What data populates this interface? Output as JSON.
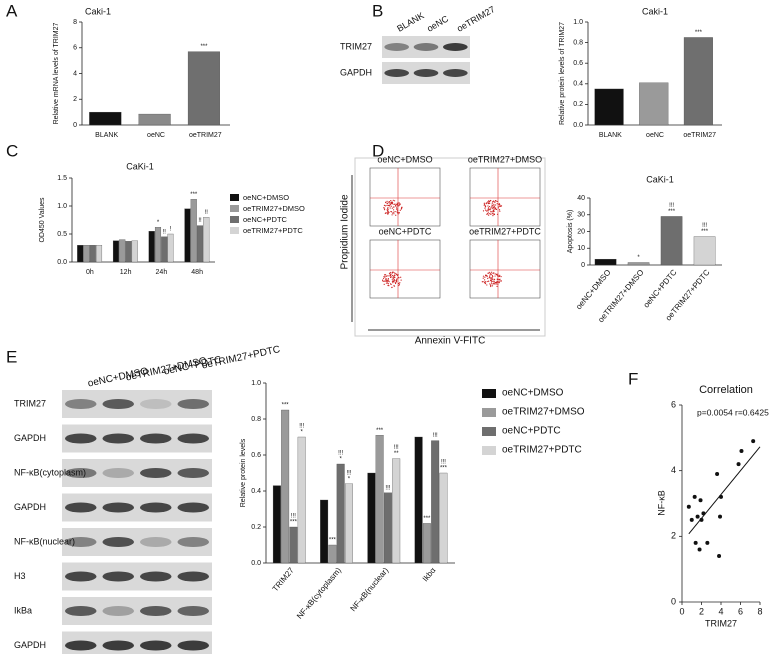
{
  "panel_labels": [
    "A",
    "B",
    "C",
    "D",
    "E",
    "F"
  ],
  "blot_B": {
    "lanes": [
      "BLANK",
      "oeNC",
      "oeTRIM27"
    ],
    "rows": [
      "TRIM27",
      "GAPDH"
    ]
  },
  "flow_D": {
    "panels": [
      "oeNC+DMSO",
      "oeTRIM27+DMSO",
      "oeNC+PDTC",
      "oeTRIM27+PDTC"
    ],
    "y_label": "Propidium Iodide",
    "x_label": "Annexin V-FITC"
  },
  "blot_E": {
    "lanes": [
      "oeNC+DMSO",
      "oeTRIM27+DMSO",
      "oeNC+PDTC",
      "oeTRIM27+PDTC"
    ],
    "rows": [
      "TRIM27",
      "GAPDH",
      "NF-κB(cytoplasm)",
      "GAPDH",
      "NF-κB(nuclear)",
      "H3",
      "IkBa",
      "GAPDH"
    ]
  },
  "chart_data": [
    {
      "type": "bar",
      "title": "Caki-1",
      "y_label": "Relative mRNA levels of TRIM27",
      "categories": [
        "BLANK",
        "oeNC",
        "oeTRIM27"
      ],
      "values": [
        1.0,
        0.85,
        5.7
      ],
      "colors": [
        "#111111",
        "#8a8a8a",
        "#6f6f6f"
      ],
      "ylim": [
        0,
        8
      ],
      "yticks": [
        0,
        2,
        4,
        6,
        8
      ],
      "annotations": [
        {
          "text": "***",
          "category": 2
        }
      ]
    },
    {
      "type": "bar",
      "title": "Caki-1",
      "y_label": "Relative protein levels of TRIM27",
      "categories": [
        "BLANK",
        "oeNC",
        "oeTRIM27"
      ],
      "values": [
        0.35,
        0.41,
        0.85
      ],
      "colors": [
        "#111111",
        "#9a9a9a",
        "#6f6f6f"
      ],
      "ylim": [
        0,
        1.0
      ],
      "yticks": [
        {
          "value": 0,
          "label": "0.0"
        },
        0.2,
        0.4,
        0.6,
        0.8,
        {
          "value": 1.0,
          "label": "1.0"
        }
      ],
      "annotations": [
        {
          "text": "***",
          "category": 2
        }
      ]
    },
    {
      "type": "bar",
      "title": "CaKi-1",
      "y_label": "OD450 Values",
      "categories": [
        "0h",
        "12h",
        "24h",
        "48h"
      ],
      "series": [
        {
          "name": "oeNC+DMSO",
          "color": "#111111",
          "values": [
            0.3,
            0.38,
            0.55,
            0.95
          ]
        },
        {
          "name": "oeTRIM27+DMSO",
          "color": "#9a9a9a",
          "values": [
            0.3,
            0.4,
            0.62,
            1.12
          ]
        },
        {
          "name": "oeNC+PDTC",
          "color": "#6e6e6e",
          "values": [
            0.3,
            0.37,
            0.45,
            0.65
          ]
        },
        {
          "name": "oeTRIM27+PDTC",
          "color": "#d4d4d4",
          "values": [
            0.3,
            0.38,
            0.5,
            0.8
          ]
        }
      ],
      "ylim": [
        0,
        1.5
      ],
      "yticks": [
        {
          "value": 0,
          "label": "0.0"
        },
        0.5,
        {
          "value": 1.0,
          "label": "1.0"
        },
        1.5
      ],
      "annotations": [
        {
          "text": "*",
          "category": 2,
          "series": 1
        },
        {
          "text": "!!",
          "category": 2,
          "series": 2
        },
        {
          "text": "!",
          "category": 2,
          "series": 3
        },
        {
          "text": "***",
          "category": 3,
          "series": 1
        },
        {
          "text": "!!",
          "category": 3,
          "series": 2
        },
        {
          "text": "!!",
          "category": 3,
          "series": 3
        }
      ]
    },
    {
      "type": "bar",
      "title": "CaKi-1",
      "y_label": "Apoptosis (%)",
      "categories": [
        "oeNC+DMSO",
        "oeTRIM27+DMSO",
        "oeNC+PDTC",
        "oeTRIM27+PDTC"
      ],
      "values": [
        3.5,
        1.5,
        29,
        17
      ],
      "colors": [
        "#111111",
        "#9a9a9a",
        "#6e6e6e",
        "#d4d4d4"
      ],
      "ylim": [
        0,
        40
      ],
      "yticks": [
        0,
        10,
        20,
        30,
        40
      ],
      "annotations": [
        {
          "text": "*",
          "category": 1
        },
        {
          "text": "***",
          "category": 2
        },
        {
          "text": "!!!",
          "category": 2
        },
        {
          "text": "***",
          "category": 3
        },
        {
          "text": "!!!",
          "category": 3
        }
      ]
    },
    {
      "type": "bar",
      "y_label": "Relative protein levels",
      "categories": [
        "TRIM27",
        "NF-κB(cytoplasm)",
        "NF-κB(nuclear)",
        "Ikbα"
      ],
      "series": [
        {
          "name": "oeNC+DMSO",
          "color": "#111111",
          "values": [
            0.43,
            0.35,
            0.5,
            0.7
          ]
        },
        {
          "name": "oeTRIM27+DMSO",
          "color": "#9a9a9a",
          "values": [
            0.85,
            0.1,
            0.71,
            0.22
          ]
        },
        {
          "name": "oeNC+PDTC",
          "color": "#6e6e6e",
          "values": [
            0.2,
            0.55,
            0.39,
            0.68
          ]
        },
        {
          "name": "oeTRIM27+PDTC",
          "color": "#d4d4d4",
          "values": [
            0.7,
            0.44,
            0.58,
            0.5
          ]
        }
      ],
      "ylim": [
        0,
        1.0
      ],
      "yticks": [
        {
          "value": 0,
          "label": "0.0"
        },
        0.2,
        0.4,
        0.6,
        0.8,
        {
          "value": 1.0,
          "label": "1.0"
        }
      ],
      "annotations": [
        {
          "text": "***",
          "category": 0,
          "series": 1
        },
        {
          "text": "***",
          "category": 0,
          "series": 2
        },
        {
          "text": "!!!",
          "category": 0,
          "series": 2
        },
        {
          "text": "*",
          "category": 0,
          "series": 3
        },
        {
          "text": "!!!",
          "category": 0,
          "series": 3
        },
        {
          "text": "***",
          "category": 1,
          "series": 1
        },
        {
          "text": "*",
          "category": 1,
          "series": 2
        },
        {
          "text": "!!!",
          "category": 1,
          "series": 2
        },
        {
          "text": "*",
          "category": 1,
          "series": 3
        },
        {
          "text": "!!!",
          "category": 1,
          "series": 3
        },
        {
          "text": "***",
          "category": 2,
          "series": 1
        },
        {
          "text": "!!!",
          "category": 2,
          "series": 2
        },
        {
          "text": "**",
          "category": 2,
          "series": 3
        },
        {
          "text": "!!!",
          "category": 2,
          "series": 3
        },
        {
          "text": "***",
          "category": 3,
          "series": 1
        },
        {
          "text": "!!!",
          "category": 3,
          "series": 2
        },
        {
          "text": "***",
          "category": 3,
          "series": 3
        },
        {
          "text": "!!!",
          "category": 3,
          "series": 3
        }
      ]
    },
    {
      "type": "scatter",
      "title": "Correlation",
      "x_label": "TRIM27",
      "y_label": "NF-κB",
      "annotations": [
        "p=0.0054",
        "r=0.6425"
      ],
      "x": [
        0.7,
        1.0,
        1.3,
        1.4,
        1.6,
        1.8,
        1.9,
        2.0,
        2.2,
        2.6,
        3.6,
        3.8,
        3.9,
        4.0,
        5.8,
        6.1,
        7.3
      ],
      "y": [
        2.9,
        2.5,
        3.2,
        1.8,
        2.6,
        1.6,
        3.1,
        2.5,
        2.7,
        1.8,
        3.9,
        1.4,
        2.6,
        3.2,
        4.2,
        4.6,
        4.9
      ],
      "color": "#111111",
      "xlim": [
        0,
        8
      ],
      "xticks": [
        0,
        2,
        4,
        6,
        8
      ],
      "ylim": [
        0,
        6
      ],
      "yticks": [
        0,
        2,
        4,
        6
      ]
    }
  ]
}
